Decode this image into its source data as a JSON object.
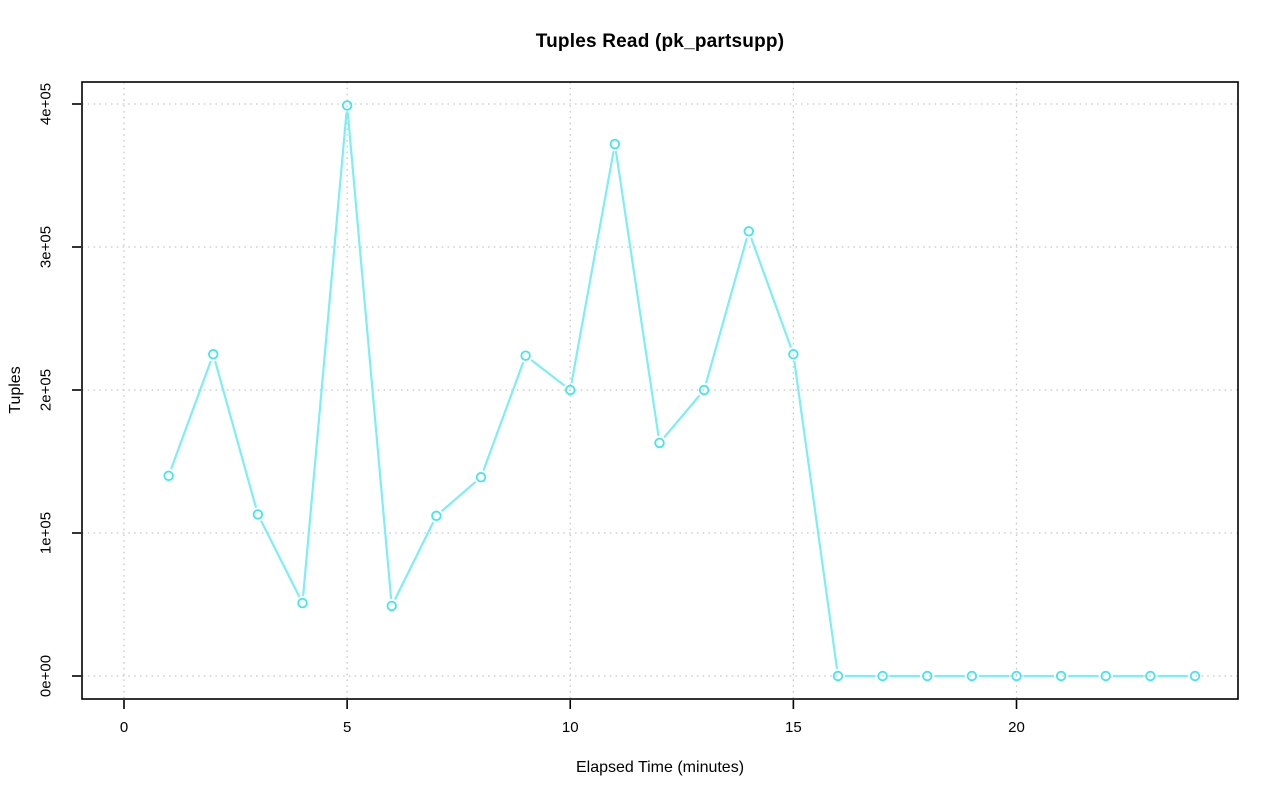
{
  "chart_data": {
    "type": "line",
    "title": "Tuples Read (pk_partsupp)",
    "xlabel": "Elapsed Time (minutes)",
    "ylabel": "Tuples",
    "x": [
      1,
      2,
      3,
      4,
      5,
      6,
      7,
      8,
      9,
      10,
      11,
      12,
      13,
      14,
      15,
      16,
      17,
      18,
      19,
      20,
      21,
      22,
      23,
      24
    ],
    "values": [
      140000,
      225000,
      113000,
      51000,
      399000,
      49000,
      112000,
      139000,
      224000,
      200000,
      372000,
      163000,
      200000,
      311000,
      225000,
      0,
      0,
      0,
      0,
      0,
      0,
      0,
      0,
      0
    ],
    "x_ticks": [
      0,
      5,
      10,
      15,
      20
    ],
    "x_tick_labels": [
      "0",
      "5",
      "10",
      "15",
      "20"
    ],
    "y_tick_values": [
      0,
      100000,
      200000,
      300000,
      400000
    ],
    "y_tick_labels": [
      "0e+00",
      "1e+05",
      "2e+05",
      "3e+05",
      "4e+05"
    ],
    "xlim": [
      -0.94,
      24.97
    ],
    "ylim": [
      -16000,
      416000
    ],
    "grid": true,
    "grid_style": "dotted",
    "legend": "none",
    "marker": "open-circle",
    "line_color": "#7deef3",
    "marker_color": "#44e5ee",
    "grid_color": "#c8c8c8",
    "axis_color": "#000000",
    "background_color": "#ffffff"
  }
}
